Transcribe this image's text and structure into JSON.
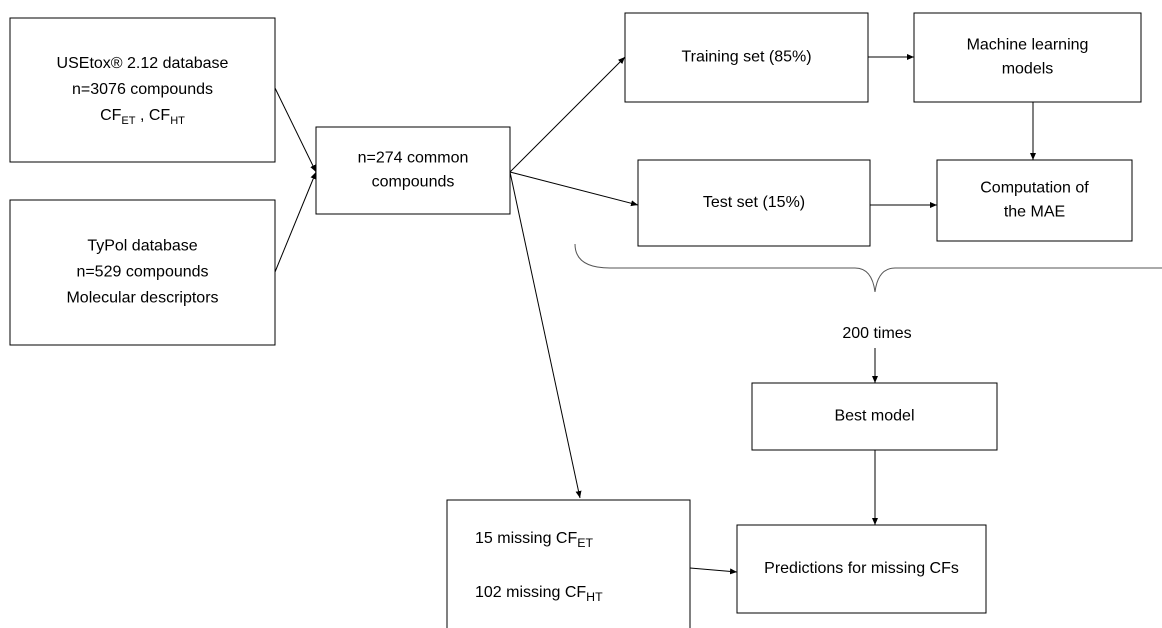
{
  "nodes": [
    {
      "lines": [
        "USEtox® 2.12 database",
        "n=3076 compounds",
        [
          {
            "text": "CF"
          },
          {
            "sub": "ET"
          },
          {
            "text": " , CF"
          },
          {
            "sub": "HT"
          }
        ]
      ]
    },
    {
      "lines": [
        "TyPol database",
        "n=529 compounds",
        "Molecular descriptors"
      ]
    },
    {
      "lines": [
        "n=274 common",
        "compounds"
      ]
    },
    {
      "lines": [
        "Training set (85%)"
      ]
    },
    {
      "lines": [
        "Machine learning",
        "models"
      ]
    },
    {
      "lines": [
        "Test set (15%)"
      ]
    },
    {
      "lines": [
        "Computation of",
        "the MAE"
      ]
    },
    {
      "lines": [
        "Best model"
      ]
    },
    {
      "lines": [
        [
          {
            "text": "15 missing CF"
          },
          {
            "sub": "ET"
          }
        ],
        [
          {
            "text": "102 missing CF"
          },
          {
            "sub": "HT"
          }
        ]
      ]
    },
    {
      "lines": [
        "Predictions for missing CFs"
      ]
    }
  ],
  "repeat_label": "200 times"
}
